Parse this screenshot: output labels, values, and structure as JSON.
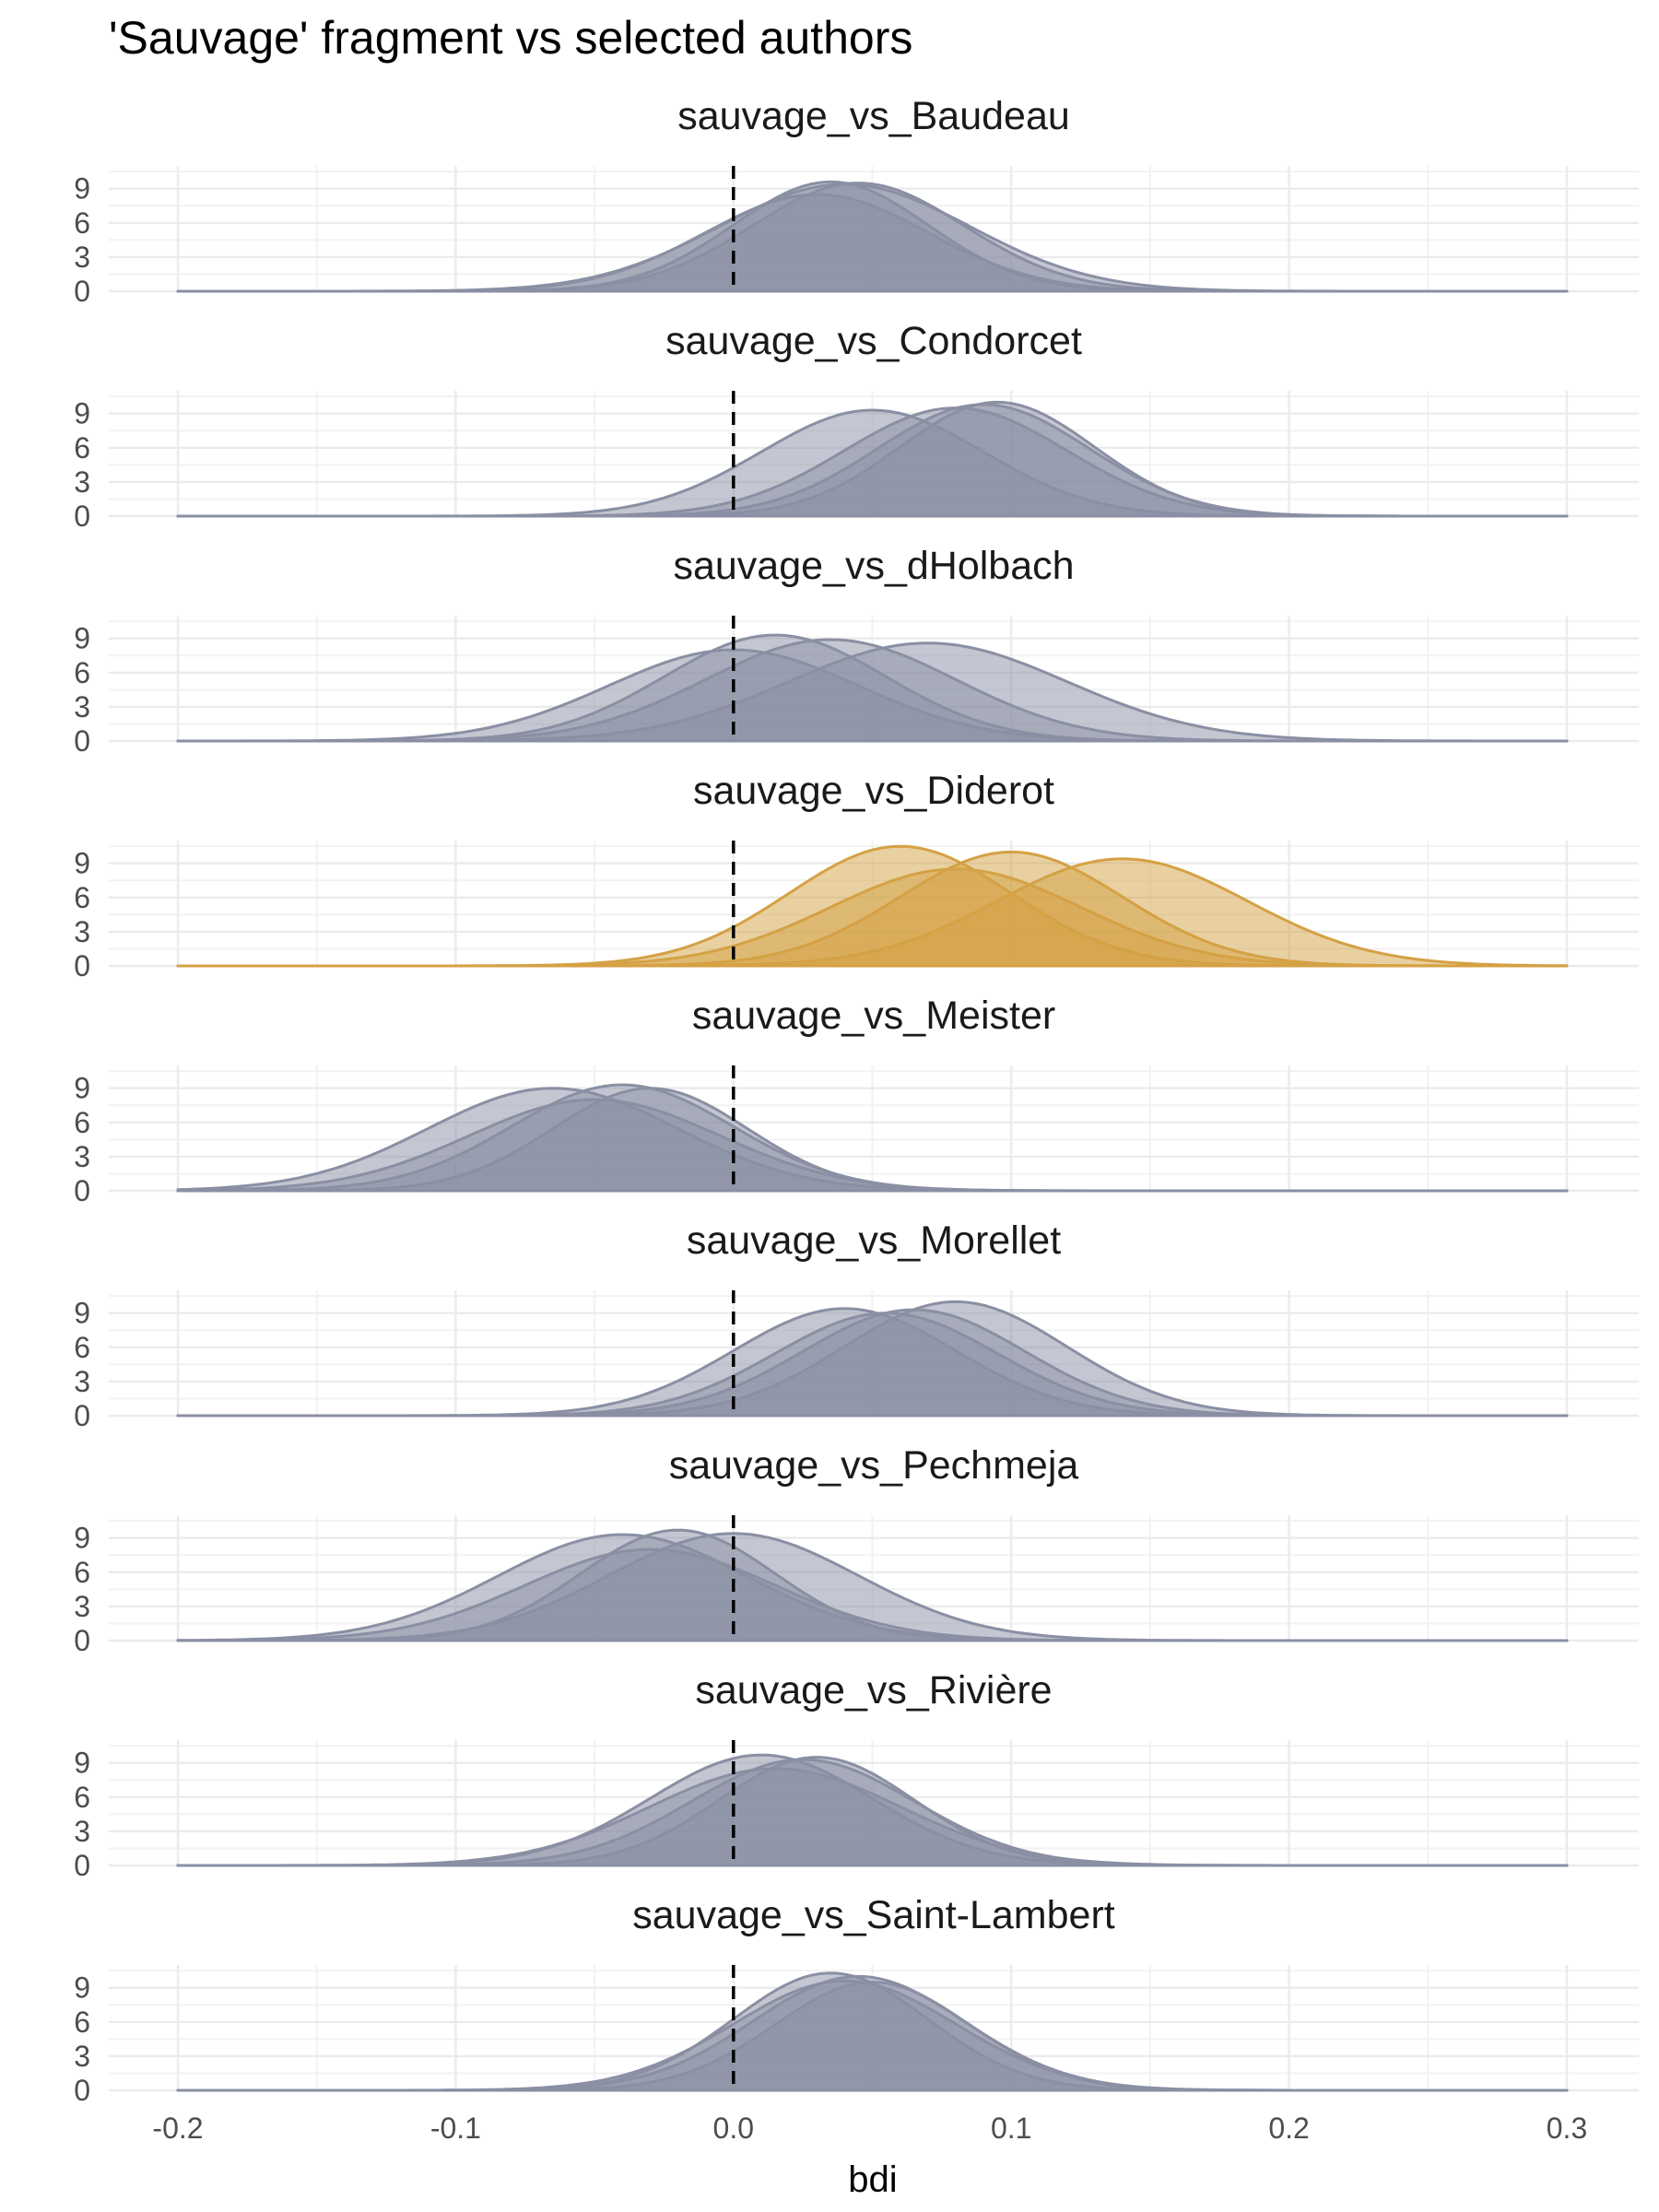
{
  "chart_data": {
    "type": "area",
    "title": "'Sauvage' fragment vs selected authors",
    "xlabel": "bdi",
    "ylabel": "",
    "xlim": [
      -0.2,
      0.3
    ],
    "x_ticks": [
      "-0.2",
      "-0.1",
      "0.0",
      "0.1",
      "0.2",
      "0.3"
    ],
    "x_tick_values": [
      -0.2,
      -0.1,
      0.0,
      0.1,
      0.2,
      0.3
    ],
    "ylim": [
      0,
      11
    ],
    "y_ticks": [
      "0",
      "3",
      "6",
      "9"
    ],
    "y_tick_values": [
      0,
      3,
      6,
      9
    ],
    "reference_line": {
      "x": 0,
      "style": "dashed",
      "color": "#000000"
    },
    "grid": true,
    "colors": {
      "default": "#8a8fa3",
      "highlight": "#d4a144"
    },
    "facets": [
      {
        "title": "sauvage_vs_Baudeau",
        "highlight": false,
        "densities": [
          {
            "mean": 0.04,
            "sd": 0.045,
            "peak": 9.4
          },
          {
            "mean": 0.035,
            "sd": 0.035,
            "peak": 9.6
          },
          {
            "mean": 0.045,
            "sd": 0.038,
            "peak": 9.5
          },
          {
            "mean": 0.03,
            "sd": 0.04,
            "peak": 8.5
          }
        ]
      },
      {
        "title": "sauvage_vs_Condorcet",
        "highlight": false,
        "densities": [
          {
            "mean": 0.05,
            "sd": 0.04,
            "peak": 9.3
          },
          {
            "mean": 0.08,
            "sd": 0.04,
            "peak": 9.5
          },
          {
            "mean": 0.095,
            "sd": 0.035,
            "peak": 10.0
          },
          {
            "mean": 0.09,
            "sd": 0.038,
            "peak": 9.8
          }
        ]
      },
      {
        "title": "sauvage_vs_dHolbach",
        "highlight": false,
        "densities": [
          {
            "mean": 0.015,
            "sd": 0.04,
            "peak": 9.3
          },
          {
            "mean": 0.035,
            "sd": 0.045,
            "peak": 8.9
          },
          {
            "mean": 0.07,
            "sd": 0.05,
            "peak": 8.6
          },
          {
            "mean": 0.0,
            "sd": 0.045,
            "peak": 8.0
          }
        ]
      },
      {
        "title": "sauvage_vs_Diderot",
        "highlight": true,
        "densities": [
          {
            "mean": 0.06,
            "sd": 0.04,
            "peak": 10.5
          },
          {
            "mean": 0.1,
            "sd": 0.04,
            "peak": 10.0
          },
          {
            "mean": 0.14,
            "sd": 0.045,
            "peak": 9.4
          },
          {
            "mean": 0.08,
            "sd": 0.045,
            "peak": 8.5
          }
        ]
      },
      {
        "title": "sauvage_vs_Meister",
        "highlight": false,
        "densities": [
          {
            "mean": -0.065,
            "sd": 0.045,
            "peak": 9.0
          },
          {
            "mean": -0.04,
            "sd": 0.04,
            "peak": 9.3
          },
          {
            "mean": -0.03,
            "sd": 0.035,
            "peak": 9.0
          },
          {
            "mean": -0.05,
            "sd": 0.045,
            "peak": 8.0
          }
        ]
      },
      {
        "title": "sauvage_vs_Morellet",
        "highlight": false,
        "densities": [
          {
            "mean": 0.04,
            "sd": 0.04,
            "peak": 9.4
          },
          {
            "mean": 0.065,
            "sd": 0.04,
            "peak": 9.3
          },
          {
            "mean": 0.08,
            "sd": 0.04,
            "peak": 10.0
          },
          {
            "mean": 0.055,
            "sd": 0.04,
            "peak": 9.0
          }
        ]
      },
      {
        "title": "sauvage_vs_Pechmeja",
        "highlight": false,
        "densities": [
          {
            "mean": -0.04,
            "sd": 0.045,
            "peak": 9.3
          },
          {
            "mean": -0.02,
            "sd": 0.035,
            "peak": 9.7
          },
          {
            "mean": 0.0,
            "sd": 0.045,
            "peak": 9.4
          },
          {
            "mean": -0.03,
            "sd": 0.045,
            "peak": 8.0
          }
        ]
      },
      {
        "title": "sauvage_vs_Rivière",
        "highlight": false,
        "densities": [
          {
            "mean": 0.01,
            "sd": 0.04,
            "peak": 9.7
          },
          {
            "mean": 0.03,
            "sd": 0.035,
            "peak": 9.5
          },
          {
            "mean": 0.025,
            "sd": 0.04,
            "peak": 9.3
          },
          {
            "mean": 0.015,
            "sd": 0.045,
            "peak": 8.5
          }
        ]
      },
      {
        "title": "sauvage_vs_Saint-Lambert",
        "highlight": false,
        "densities": [
          {
            "mean": 0.035,
            "sd": 0.035,
            "peak": 10.3
          },
          {
            "mean": 0.045,
            "sd": 0.038,
            "peak": 10.0
          },
          {
            "mean": 0.04,
            "sd": 0.04,
            "peak": 9.6
          },
          {
            "mean": 0.05,
            "sd": 0.035,
            "peak": 9.5
          }
        ]
      }
    ]
  }
}
